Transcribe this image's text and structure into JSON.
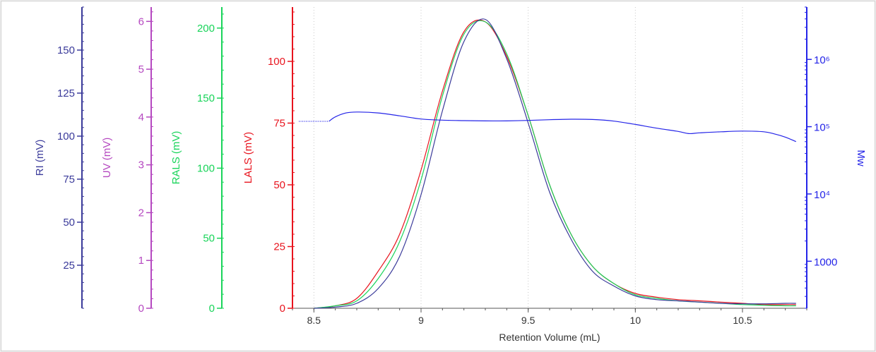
{
  "chart_data": {
    "type": "line",
    "xlabel": "Retention Volume (mL)",
    "xlim": [
      8.4,
      10.8
    ],
    "x_ticks": [
      "8.5",
      "9",
      "9.5",
      "10",
      "10.5"
    ],
    "axes": {
      "ri": {
        "label": "RI (mV)",
        "color": "#3a3a9a",
        "range": [
          0,
          175
        ],
        "ticks": [
          "25",
          "50",
          "75",
          "100",
          "125",
          "150"
        ]
      },
      "uv": {
        "label": "UV (mV)",
        "color": "#b548c0",
        "range": [
          0,
          6.3
        ],
        "ticks": [
          "0",
          "1",
          "2",
          "3",
          "4",
          "5",
          "6"
        ]
      },
      "rals": {
        "label": "RALS (mV)",
        "color": "#19d45a",
        "range": [
          0,
          215
        ],
        "ticks": [
          "0",
          "50",
          "100",
          "150",
          "200"
        ]
      },
      "lals": {
        "label": "LALS (mV)",
        "color": "#e8141e",
        "range": [
          0,
          122
        ],
        "ticks": [
          "0",
          "25",
          "50",
          "75",
          "100"
        ]
      },
      "mw": {
        "label": "Mw",
        "color": "#2424e8",
        "scale": "log",
        "range": [
          200,
          6000000
        ],
        "ticks": [
          "1000",
          "10⁴",
          "10⁵",
          "10⁶"
        ]
      }
    },
    "series": [
      {
        "key": "lals",
        "axis": "lals",
        "color": "#e8141e",
        "x": [
          8.5,
          8.6,
          8.7,
          8.8,
          8.9,
          9.0,
          9.1,
          9.2,
          9.3,
          9.4,
          9.5,
          9.6,
          9.7,
          9.8,
          9.9,
          10.0,
          10.1,
          10.2,
          10.3,
          10.4,
          10.5,
          10.6,
          10.7,
          10.75
        ],
        "y": [
          0,
          1,
          4,
          15,
          30,
          56,
          88,
          112,
          116,
          102,
          78,
          50,
          30,
          17,
          10,
          6,
          4.5,
          3.5,
          3,
          2.5,
          2,
          1.5,
          1.5,
          1.5
        ]
      },
      {
        "key": "rals",
        "axis": "lals",
        "color": "#19d45a",
        "x": [
          8.5,
          8.6,
          8.7,
          8.8,
          8.9,
          9.0,
          9.1,
          9.2,
          9.3,
          9.4,
          9.5,
          9.6,
          9.7,
          9.8,
          9.9,
          10.0,
          10.1,
          10.2,
          10.3,
          10.4,
          10.5,
          10.6,
          10.7,
          10.75
        ],
        "y": [
          0,
          1,
          3,
          12,
          27,
          52,
          86,
          111,
          116,
          103,
          78,
          50,
          30,
          17,
          10,
          5.5,
          4,
          3,
          2.5,
          2,
          1.5,
          1.2,
          1,
          1
        ]
      },
      {
        "key": "ri",
        "axis": "lals",
        "color": "#3a3a9a",
        "x": [
          8.5,
          8.6,
          8.7,
          8.8,
          8.9,
          9.0,
          9.1,
          9.2,
          9.3,
          9.4,
          9.5,
          9.6,
          9.7,
          9.8,
          9.9,
          10.0,
          10.1,
          10.2,
          10.3,
          10.4,
          10.5,
          10.6,
          10.7,
          10.75
        ],
        "y": [
          0,
          0.5,
          2,
          8,
          21,
          46,
          80,
          108,
          117,
          101,
          75,
          47,
          28,
          15,
          9,
          5,
          3.5,
          3,
          2.5,
          2,
          1.8,
          1.8,
          2,
          2
        ]
      },
      {
        "key": "mw",
        "axis": "mw",
        "color": "#2424e8",
        "x": [
          8.57,
          8.6,
          8.65,
          8.7,
          8.8,
          8.9,
          9.0,
          9.1,
          9.2,
          9.3,
          9.4,
          9.5,
          9.6,
          9.7,
          9.8,
          9.9,
          10.0,
          10.1,
          10.2,
          10.25,
          10.3,
          10.4,
          10.5,
          10.6,
          10.65,
          10.7,
          10.75
        ],
        "y": [
          120000,
          140000,
          160000,
          165000,
          160000,
          145000,
          130000,
          125000,
          123000,
          122000,
          122000,
          124000,
          127000,
          129000,
          128000,
          121000,
          108000,
          95000,
          85000,
          79000,
          81000,
          84000,
          86000,
          84000,
          78000,
          70000,
          60000
        ]
      },
      {
        "key": "mw_extrapolated",
        "axis": "mw",
        "color": "#2424e8",
        "dashed": true,
        "x": [
          8.43,
          8.57
        ],
        "y": [
          120000,
          120000
        ]
      }
    ]
  }
}
